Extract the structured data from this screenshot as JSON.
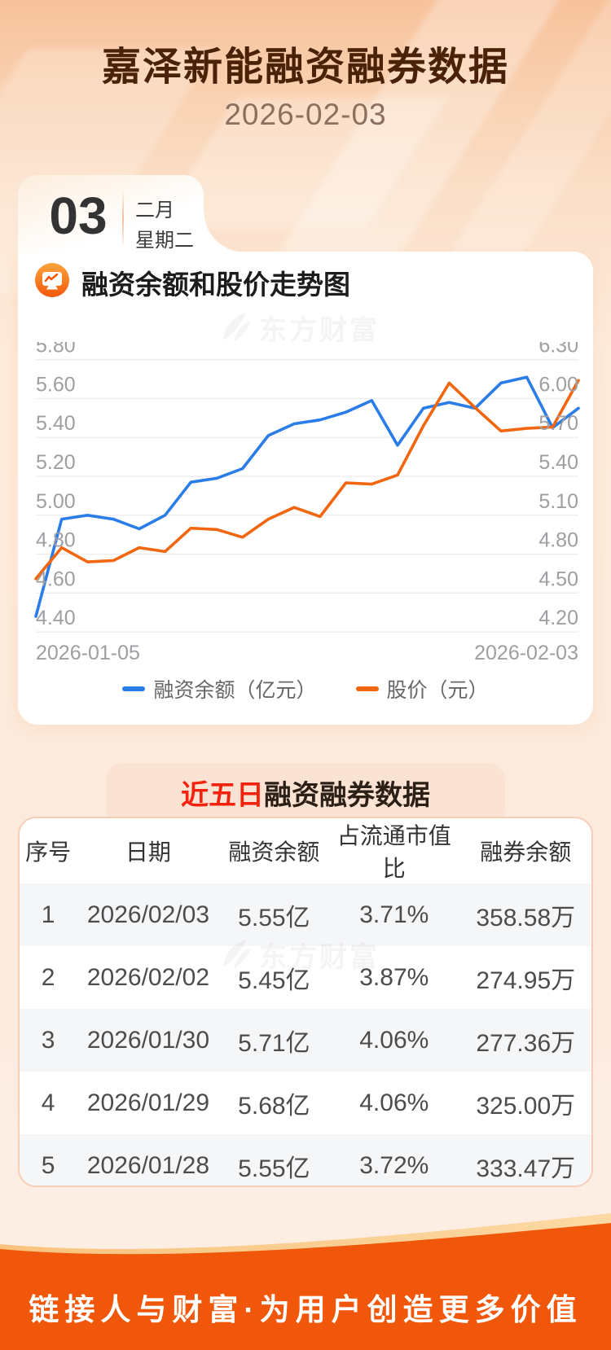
{
  "header": {
    "title": "嘉泽新能融资融券数据",
    "date": "2026-02-03",
    "day_number": "03",
    "month_label": "二月",
    "weekday_label": "星期二"
  },
  "chart_section": {
    "title": "融资余额和股价走势图",
    "icon": "chart-monitor-icon",
    "watermark": "东方财富"
  },
  "chart_data": {
    "type": "line",
    "title": "融资余额和股价走势图",
    "x_start_label": "2026-01-05",
    "x_end_label": "2026-02-03",
    "grid": true,
    "legend_position": "bottom",
    "left_axis": {
      "min": 4.4,
      "max": 5.8,
      "ticks": [
        "5.80",
        "5.60",
        "5.40",
        "5.20",
        "5.00",
        "4.80",
        "4.60",
        "4.40"
      ]
    },
    "right_axis": {
      "min": 4.2,
      "max": 6.3,
      "ticks": [
        "6.30",
        "6.00",
        "5.70",
        "5.40",
        "5.10",
        "4.80",
        "4.50",
        "4.20"
      ]
    },
    "series": [
      {
        "name": "融资余额（亿元）",
        "axis": "left",
        "color": "#2a7de8",
        "values": [
          4.48,
          4.98,
          5.0,
          4.98,
          4.93,
          5.0,
          5.17,
          5.19,
          5.24,
          5.41,
          5.47,
          5.49,
          5.53,
          5.59,
          5.36,
          5.55,
          5.58,
          5.55,
          5.68,
          5.71,
          5.45,
          5.55
        ]
      },
      {
        "name": "股价（元）",
        "axis": "right",
        "color": "#f2660f",
        "values": [
          4.61,
          4.85,
          4.74,
          4.75,
          4.85,
          4.82,
          5.0,
          4.99,
          4.93,
          5.07,
          5.16,
          5.09,
          5.35,
          5.34,
          5.41,
          5.79,
          6.12,
          5.93,
          5.75,
          5.77,
          5.78,
          6.14
        ]
      }
    ]
  },
  "table_section": {
    "title_highlight": "近五日",
    "title_rest": "融资融券数据",
    "watermark": "东方财富",
    "columns": [
      "序号",
      "日期",
      "融资余额",
      "占流通市值比",
      "融券余额"
    ],
    "rows": [
      [
        "1",
        "2026/02/03",
        "5.55亿",
        "3.71%",
        "358.58万"
      ],
      [
        "2",
        "2026/02/02",
        "5.45亿",
        "3.87%",
        "274.95万"
      ],
      [
        "3",
        "2026/01/30",
        "5.71亿",
        "4.06%",
        "277.36万"
      ],
      [
        "4",
        "2026/01/29",
        "5.68亿",
        "4.06%",
        "325.00万"
      ],
      [
        "5",
        "2026/01/28",
        "5.55亿",
        "3.72%",
        "333.47万"
      ]
    ]
  },
  "footer": {
    "slogan": "链接人与财富·为用户创造更多价值"
  },
  "colors": {
    "blue_line": "#2a7de8",
    "orange_line": "#f2660f",
    "footer_orange": "#f1570a",
    "title_brown": "#4a2208",
    "highlight_red": "#f5230d",
    "axis_label_gray": "#9e9ea3",
    "gridline": "#ececec",
    "row_stripe": "#f5f6f8",
    "pink_box": "#fbe3d4"
  }
}
